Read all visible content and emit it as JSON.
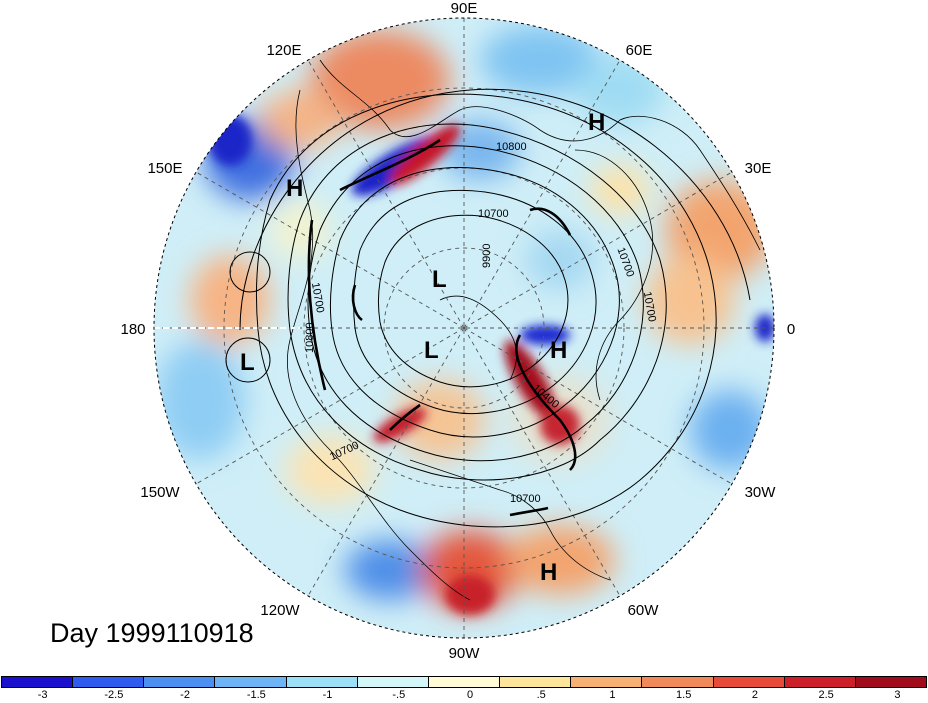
{
  "map": {
    "projection": "north polar stereographic",
    "longitude_labels": {
      "top": "90E",
      "upper_left": "120E",
      "upper_right": "60E",
      "left_upper": "150E",
      "right_upper": "30E",
      "left": "180",
      "right": "0",
      "left_lower": "150W",
      "right_lower": "30W",
      "lower_left": "120W",
      "lower_right": "60W",
      "bottom": "90W"
    },
    "pressure_centers": [
      {
        "id": "h1",
        "label": "H"
      },
      {
        "id": "h2",
        "label": "H"
      },
      {
        "id": "h3",
        "label": "H"
      },
      {
        "id": "h4",
        "label": "H"
      },
      {
        "id": "l1",
        "label": "L"
      },
      {
        "id": "l2",
        "label": "L"
      },
      {
        "id": "l3",
        "label": "L"
      }
    ],
    "contour_labels": [
      "10800",
      "10700",
      "9900",
      "10700",
      "10700",
      "10700",
      "10800",
      "10700",
      "10400",
      "10700"
    ]
  },
  "title": "Day 1999110918",
  "colorbar": {
    "colors": [
      "#1c10cf",
      "#2f5cee",
      "#4b8ff0",
      "#6db4f5",
      "#9be0f6",
      "#d3f6f8",
      "#fffbd6",
      "#fde59a",
      "#f7b172",
      "#f08a5a",
      "#e84a3a",
      "#cd1f29",
      "#a00c1c"
    ],
    "labels": [
      "-3",
      "-2.5",
      "-2",
      "-1.5",
      "-1",
      "-.5",
      "0",
      ".5",
      "1",
      "1.5",
      "2",
      "2.5",
      "3"
    ]
  }
}
